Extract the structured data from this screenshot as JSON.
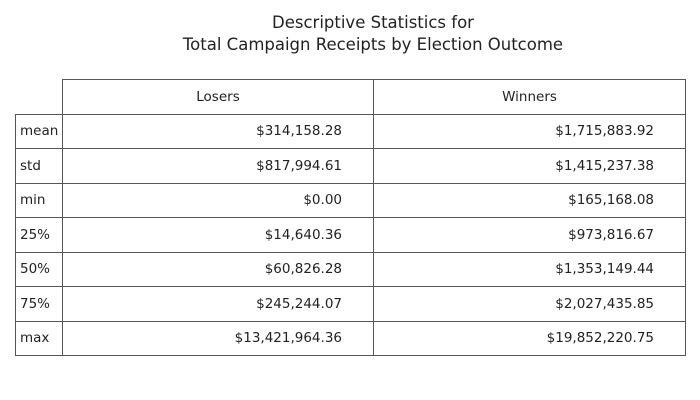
{
  "chart_data": {
    "type": "table",
    "title_lines": [
      "Descriptive Statistics for",
      "Total Campaign Receipts by Election Outcome"
    ],
    "columns": [
      "Losers",
      "Winners"
    ],
    "rows": [
      {
        "label": "mean",
        "values": [
          "$314,158.28",
          "$1,715,883.92"
        ]
      },
      {
        "label": "std",
        "values": [
          "$817,994.61",
          "$1,415,237.38"
        ]
      },
      {
        "label": "min",
        "values": [
          "$0.00",
          "$165,168.08"
        ]
      },
      {
        "label": "25%",
        "values": [
          "$14,640.36",
          "$973,816.67"
        ]
      },
      {
        "label": "50%",
        "values": [
          "$60,826.28",
          "$1,353,149.44"
        ]
      },
      {
        "label": "75%",
        "values": [
          "$245,244.07",
          "$2,027,435.85"
        ]
      },
      {
        "label": "max",
        "values": [
          "$13,421,964.36",
          "$19,852,220.75"
        ]
      }
    ]
  }
}
